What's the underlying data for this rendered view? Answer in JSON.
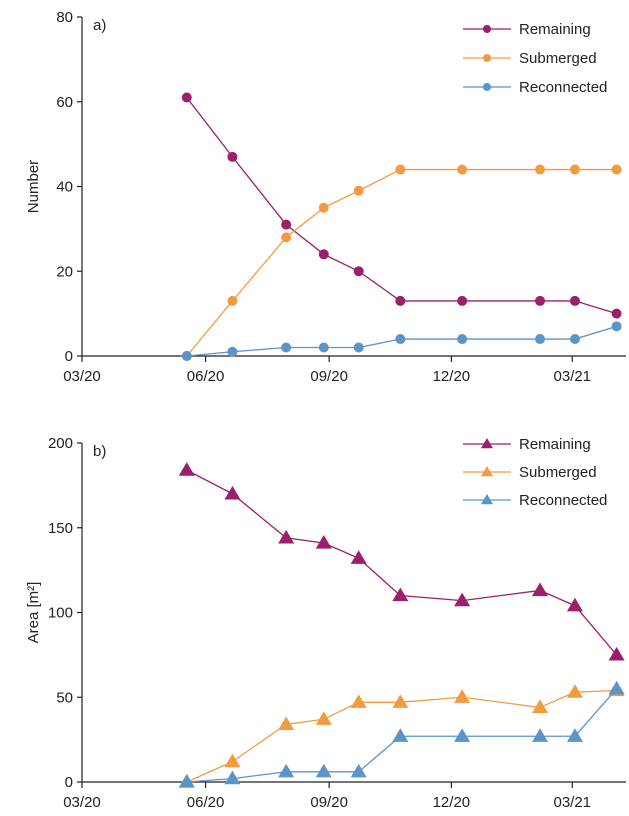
{
  "colors": {
    "remaining": "#9b1f6b",
    "submerged": "#f39c3f",
    "reconnected": "#5b95c8",
    "axis": "#222222"
  },
  "chart_data": [
    {
      "type": "line",
      "panel_label": "a)",
      "ylabel": "Number",
      "xlabel": "",
      "x_ticks": [
        "03/20",
        "06/20",
        "09/20",
        "12/20",
        "03/21"
      ],
      "x_tick_dates": [
        "2020-03-01",
        "2020-06-01",
        "2020-09-01",
        "2020-12-01",
        "2021-03-01"
      ],
      "xlim": [
        "2020-03-01",
        "2021-04-10"
      ],
      "ylim": [
        0,
        80
      ],
      "y_ticks": [
        0,
        20,
        40,
        60,
        80
      ],
      "marker": "circle",
      "legend_position": "top-right",
      "x": [
        "2020-05-18",
        "2020-06-21",
        "2020-07-31",
        "2020-08-28",
        "2020-09-23",
        "2020-10-24",
        "2020-12-09",
        "2021-02-05",
        "2021-03-03",
        "2021-04-03"
      ],
      "series": [
        {
          "name": "Remaining",
          "color": "#9b1f6b",
          "values": [
            61,
            47,
            31,
            24,
            20,
            13,
            13,
            13,
            13,
            10
          ]
        },
        {
          "name": "Submerged",
          "color": "#f39c3f",
          "values": [
            0,
            13,
            28,
            35,
            39,
            44,
            44,
            44,
            44,
            44
          ]
        },
        {
          "name": "Reconnected",
          "color": "#5b95c8",
          "values": [
            0,
            1,
            2,
            2,
            2,
            4,
            4,
            4,
            4,
            7
          ]
        }
      ]
    },
    {
      "type": "line",
      "panel_label": "b)",
      "ylabel": "Area [m²]",
      "xlabel": "",
      "x_ticks": [
        "03/20",
        "06/20",
        "09/20",
        "12/20",
        "03/21"
      ],
      "x_tick_dates": [
        "2020-03-01",
        "2020-06-01",
        "2020-09-01",
        "2020-12-01",
        "2021-03-01"
      ],
      "xlim": [
        "2020-03-01",
        "2021-04-10"
      ],
      "ylim": [
        0,
        200
      ],
      "y_ticks": [
        0,
        50,
        100,
        150,
        200
      ],
      "marker": "triangle",
      "legend_position": "top-right",
      "x": [
        "2020-05-18",
        "2020-06-21",
        "2020-07-31",
        "2020-08-28",
        "2020-09-23",
        "2020-10-24",
        "2020-12-09",
        "2021-02-05",
        "2021-03-03",
        "2021-04-03"
      ],
      "series": [
        {
          "name": "Remaining",
          "color": "#9b1f6b",
          "values": [
            184,
            170,
            144,
            141,
            132,
            110,
            107,
            113,
            104,
            75
          ]
        },
        {
          "name": "Submerged",
          "color": "#f39c3f",
          "values": [
            0,
            12,
            34,
            37,
            47,
            47,
            50,
            44,
            53,
            54
          ]
        },
        {
          "name": "Reconnected",
          "color": "#5b95c8",
          "values": [
            0,
            2,
            6,
            6,
            6,
            27,
            27,
            27,
            27,
            55
          ]
        }
      ]
    }
  ]
}
